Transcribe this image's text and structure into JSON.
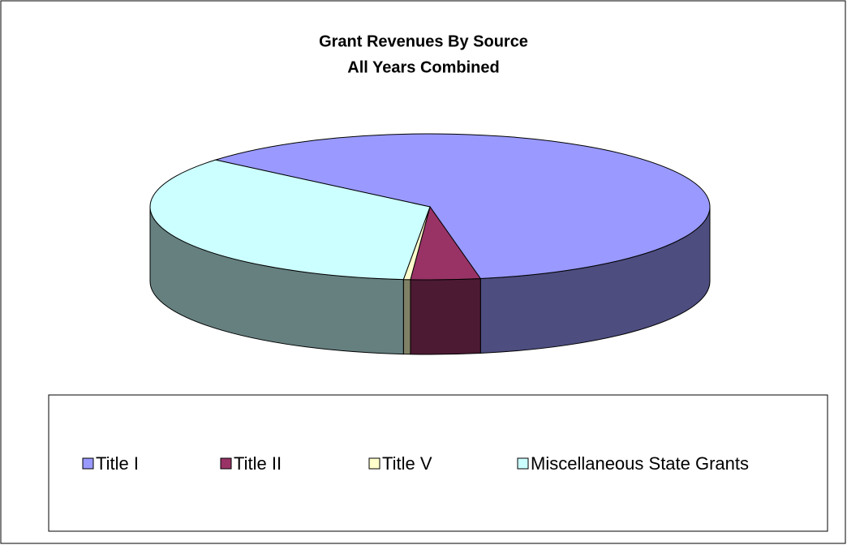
{
  "chart_data": {
    "type": "pie3d",
    "title": [
      "Grant Revenues By Source",
      "All Years Combined"
    ],
    "categories": [
      "Title I",
      "Title II",
      "Title V",
      "Miscellaneous State Grants"
    ],
    "values": [
      61,
      4,
      0.4,
      34.6
    ],
    "colors": [
      "#9999ff",
      "#993366",
      "#ffffcc",
      "#ccffff"
    ],
    "legend": "bottom"
  }
}
